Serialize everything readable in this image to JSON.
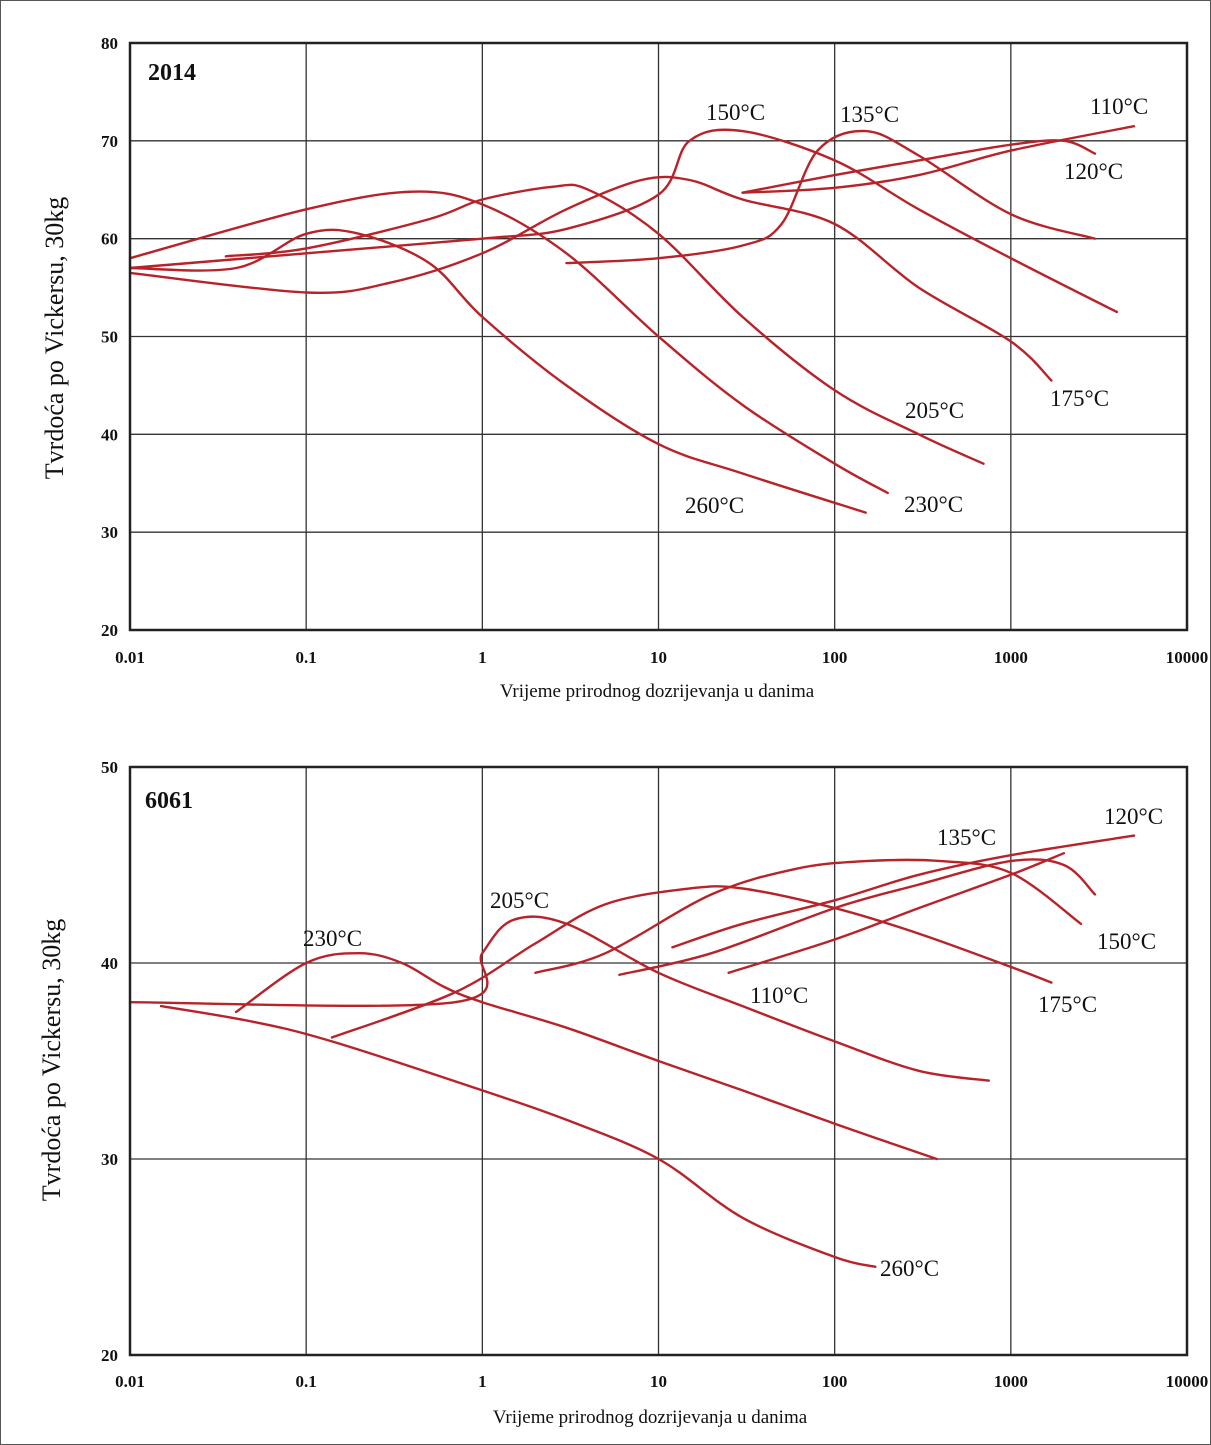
{
  "chart_data": [
    {
      "type": "line",
      "title": "2014",
      "xlabel": "Vrijeme prirodnog dozrijevanja u danima",
      "ylabel": "Tvrdoća po Vickersu, 30kg",
      "xscale": "log",
      "xlim": [
        0.01,
        10000
      ],
      "ylim": [
        20,
        80
      ],
      "x_ticks": [
        "0.01",
        "0.1",
        "1",
        "10",
        "100",
        "1000",
        "10000"
      ],
      "y_ticks": [
        "80",
        "70",
        "60",
        "50",
        "40",
        "30",
        "20"
      ],
      "grid": true,
      "series": [
        {
          "name": "110°C",
          "x": [
            30,
            100,
            300,
            1000,
            5000
          ],
          "y": [
            64.7,
            65.2,
            66.5,
            69.0,
            71.5
          ]
        },
        {
          "name": "120°C",
          "x": [
            30,
            100,
            300,
            1000,
            2000,
            3000
          ],
          "y": [
            64.7,
            66.5,
            68.0,
            69.6,
            70.0,
            68.7
          ]
        },
        {
          "name": "135°C",
          "x": [
            3,
            10,
            30,
            50,
            80,
            150,
            300,
            1000,
            3000
          ],
          "y": [
            57.5,
            58.0,
            59.3,
            61.5,
            69.0,
            71.0,
            68.5,
            62.5,
            60.0
          ]
        },
        {
          "name": "150°C",
          "x": [
            0.01,
            0.1,
            1,
            3,
            10,
            15,
            30,
            100,
            300,
            1000,
            4000
          ],
          "y": [
            57.0,
            58.5,
            60.0,
            61.0,
            64.5,
            70.0,
            71.0,
            68.0,
            63.0,
            58.0,
            52.5
          ]
        },
        {
          "name": "175°C",
          "x": [
            0.01,
            0.1,
            0.3,
            1,
            3,
            8,
            15,
            30,
            100,
            300,
            1000,
            1700
          ],
          "y": [
            56.5,
            54.5,
            55.5,
            58.5,
            63.0,
            66.0,
            66.0,
            64.0,
            61.5,
            55.0,
            49.5,
            45.5
          ]
        },
        {
          "name": "205°C",
          "x": [
            0.035,
            0.1,
            0.5,
            1,
            2.5,
            4,
            10,
            30,
            100,
            300,
            700
          ],
          "y": [
            58.2,
            59.0,
            62.0,
            64.0,
            65.3,
            65.0,
            60.5,
            52.0,
            44.5,
            40.0,
            37.0
          ]
        },
        {
          "name": "230°C",
          "x": [
            0.01,
            0.1,
            0.4,
            1,
            3,
            10,
            30,
            100,
            200
          ],
          "y": [
            58.0,
            63.0,
            64.8,
            63.5,
            58.5,
            50.0,
            43.0,
            37.0,
            34.0
          ]
        },
        {
          "name": "260°C",
          "x": [
            0.01,
            0.04,
            0.1,
            0.2,
            0.5,
            1,
            3,
            10,
            30,
            150
          ],
          "y": [
            57.0,
            57.0,
            60.5,
            60.5,
            57.5,
            52.0,
            45.0,
            39.0,
            36.0,
            32.0
          ]
        }
      ],
      "labels": [
        "150°C",
        "135°C",
        "110°C",
        "120°C",
        "175°C",
        "205°C",
        "230°C",
        "260°C"
      ]
    },
    {
      "type": "line",
      "title": "6061",
      "xlabel": "Vrijeme prirodnog dozrijevanja u danima",
      "ylabel": "Tvrdoća po Vickersu, 30kg",
      "xscale": "log",
      "xlim": [
        0.01,
        10000
      ],
      "ylim": [
        20,
        50
      ],
      "x_ticks": [
        "0.01",
        "0.1",
        "1",
        "10",
        "100",
        "1000",
        "10000"
      ],
      "y_ticks": [
        "50",
        "40",
        "30",
        "20"
      ],
      "grid": true,
      "series": [
        {
          "name": "110°C",
          "x": [
            25,
            100,
            300,
            1000,
            2000
          ],
          "y": [
            39.5,
            41.2,
            42.8,
            44.5,
            45.6
          ]
        },
        {
          "name": "120°C",
          "x": [
            12,
            30,
            100,
            300,
            1000,
            5000
          ],
          "y": [
            40.8,
            42.0,
            43.2,
            44.5,
            45.5,
            46.5
          ]
        },
        {
          "name": "135°C",
          "x": [
            6,
            20,
            100,
            300,
            1000,
            2000,
            3000
          ],
          "y": [
            39.4,
            40.5,
            42.8,
            44.0,
            45.2,
            45.0,
            43.5
          ]
        },
        {
          "name": "150°C",
          "x": [
            2,
            5,
            20,
            60,
            150,
            400,
            1000,
            2500
          ],
          "y": [
            39.5,
            40.5,
            43.5,
            44.8,
            45.2,
            45.2,
            44.6,
            42.0
          ]
        },
        {
          "name": "175°C",
          "x": [
            0.14,
            0.7,
            2,
            5,
            15,
            30,
            100,
            300,
            1000,
            1700
          ],
          "y": [
            36.2,
            38.5,
            41.0,
            43.0,
            43.8,
            43.8,
            42.8,
            41.5,
            39.8,
            39.0
          ]
        },
        {
          "name": "205°C",
          "x": [
            0.01,
            0.7,
            1,
            1.5,
            3,
            10,
            30,
            100,
            300,
            750
          ],
          "y": [
            38.0,
            38.0,
            40.5,
            42.2,
            42.0,
            39.5,
            37.8,
            36.0,
            34.5,
            34.0
          ]
        },
        {
          "name": "230°C",
          "x": [
            0.04,
            0.1,
            0.2,
            0.35,
            0.6,
            1,
            3,
            10,
            30,
            100,
            380
          ],
          "y": [
            37.5,
            40.0,
            40.5,
            40.0,
            38.8,
            38.0,
            36.7,
            35.0,
            33.5,
            31.8,
            30.0
          ]
        },
        {
          "name": "260°C",
          "x": [
            0.015,
            0.05,
            0.14,
            1,
            3,
            10,
            30,
            100,
            170
          ],
          "y": [
            37.8,
            37.0,
            36.0,
            33.5,
            32.0,
            30.0,
            27.0,
            25.0,
            24.5
          ]
        }
      ],
      "labels": [
        "230°C",
        "205°C",
        "135°C",
        "120°C",
        "150°C",
        "110°C",
        "175°C",
        "260°C"
      ]
    }
  ]
}
